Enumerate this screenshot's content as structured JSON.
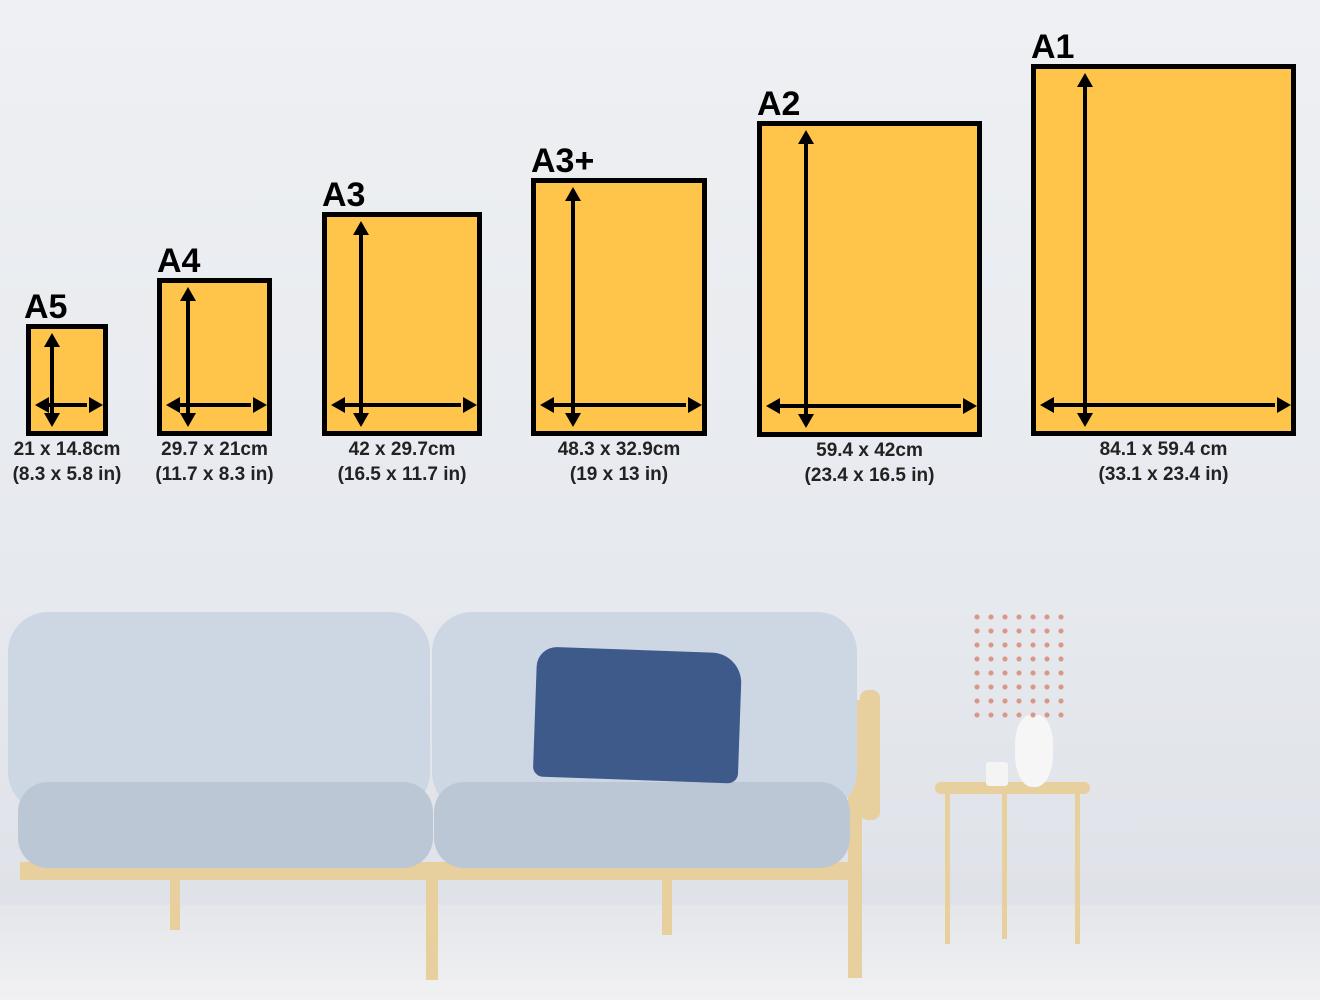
{
  "colors": {
    "frame_fill": "#FFC54A",
    "frame_border": "#000000",
    "cushion": "#3e5a8a",
    "sofa": "#c9d3e0"
  },
  "sizes": [
    {
      "name": "A5",
      "metric": "21 x 14.8cm",
      "imperial": "(8.3 x 5.8 in)"
    },
    {
      "name": "A4",
      "metric": "29.7 x 21cm",
      "imperial": "(11.7 x 8.3 in)"
    },
    {
      "name": "A3",
      "metric": "42 x 29.7cm",
      "imperial": "(16.5 x 11.7 in)"
    },
    {
      "name": "A3+",
      "metric": "48.3 x 32.9cm",
      "imperial": "(19 x 13 in)"
    },
    {
      "name": "A2",
      "metric": "59.4 x 42cm",
      "imperial": "(23.4 x 16.5 in)"
    },
    {
      "name": "A1",
      "metric": "84.1 x 59.4 cm",
      "imperial": "(33.1 x 23.4 in)"
    }
  ]
}
